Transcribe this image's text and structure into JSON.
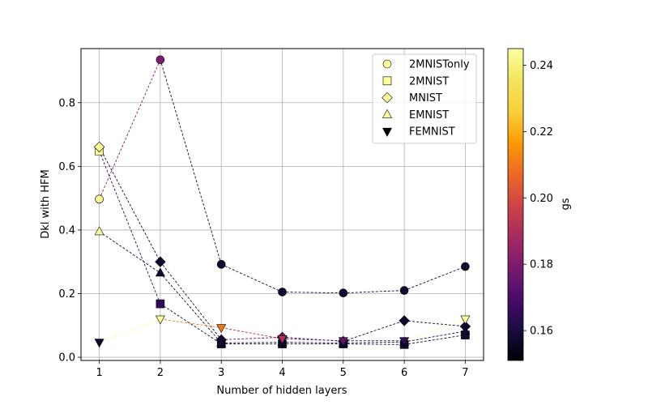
{
  "chart_data": {
    "type": "scatter",
    "xlabel": "Number of hidden layers",
    "ylabel": "Dkl with HFM",
    "x_ticks": [
      1,
      2,
      3,
      4,
      5,
      6,
      7
    ],
    "y_ticks": [
      0.0,
      0.2,
      0.4,
      0.6,
      0.8
    ],
    "xlim": [
      0.7,
      7.3
    ],
    "ylim": [
      -0.01,
      0.97
    ],
    "grid": true,
    "legend_position": "top-right",
    "colorbar": {
      "label": "gs",
      "range": [
        0.151,
        0.245
      ],
      "ticks": [
        0.16,
        0.18,
        0.2,
        0.22,
        0.24
      ],
      "colormap": "inferno"
    },
    "series": [
      {
        "name": "2MNISTonly",
        "marker": "circle",
        "x": [
          1,
          2,
          3,
          4,
          5,
          6,
          7
        ],
        "y": [
          0.497,
          0.935,
          0.292,
          0.205,
          0.202,
          0.21,
          0.285
        ],
        "gs": [
          0.244,
          0.18,
          0.158,
          0.158,
          0.158,
          0.158,
          0.158
        ]
      },
      {
        "name": "2MNIST",
        "marker": "square",
        "x": [
          1,
          2,
          3,
          4,
          5,
          6,
          7
        ],
        "y": [
          0.648,
          0.168,
          0.042,
          0.042,
          0.042,
          0.04,
          0.07
        ],
        "gs": [
          0.244,
          0.165,
          0.158,
          0.158,
          0.158,
          0.158,
          0.158
        ]
      },
      {
        "name": "MNIST",
        "marker": "diamond",
        "x": [
          1,
          2,
          3,
          4,
          5,
          6,
          7
        ],
        "y": [
          0.661,
          0.3,
          0.055,
          0.063,
          0.05,
          0.115,
          0.097
        ],
        "gs": [
          0.244,
          0.158,
          0.158,
          0.175,
          0.165,
          0.158,
          0.158
        ]
      },
      {
        "name": "EMNIST",
        "marker": "triangle-up",
        "x": [
          1,
          2,
          3,
          4,
          5,
          6,
          7
        ],
        "y": [
          0.395,
          0.265,
          0.045,
          0.047,
          0.045,
          0.048,
          0.082
        ],
        "gs": [
          0.244,
          0.158,
          0.158,
          0.158,
          0.158,
          0.158,
          0.158
        ]
      },
      {
        "name": "FEMNIST",
        "marker": "triangle-down",
        "x": [
          1,
          2,
          3,
          4,
          5,
          6,
          7
        ],
        "y": [
          0.047,
          0.12,
          0.093,
          0.058,
          0.052,
          0.052,
          0.12
        ],
        "gs": [
          0.158,
          0.244,
          0.21,
          0.19,
          0.175,
          0.165,
          0.244
        ]
      }
    ]
  }
}
